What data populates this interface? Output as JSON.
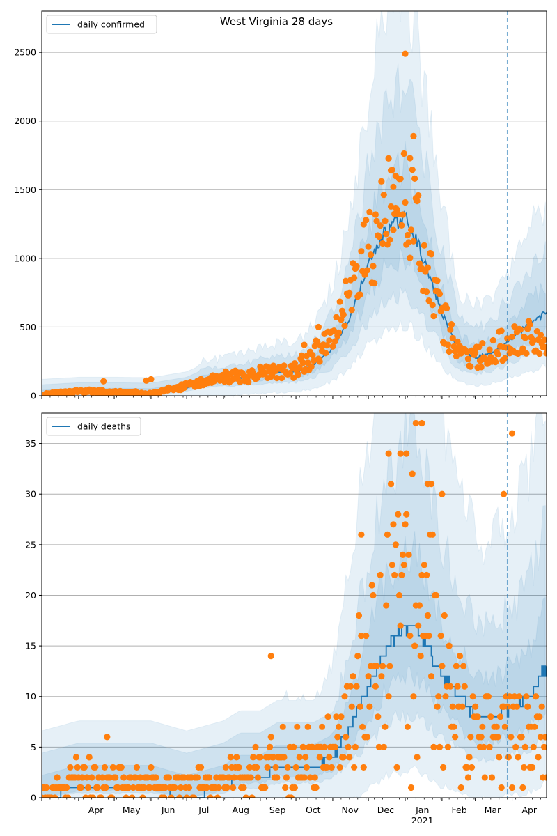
{
  "figure": {
    "title": "West Virginia 28 days"
  },
  "colors": {
    "line": "#1f77b4",
    "points": "#ff7f0e",
    "band": "#1f77b4",
    "grid": "#b0b0b0"
  },
  "chart_data": [
    {
      "type": "line",
      "title": "West Virginia 28 days",
      "legend": "daily confirmed",
      "legend_position": "top-left",
      "grid": "horizontal",
      "ylim": [
        0,
        2800
      ],
      "yticks": [
        0,
        500,
        1000,
        1500,
        2000,
        2500
      ],
      "xlabels": [
        "Apr",
        "May",
        "Jun",
        "Jul",
        "Aug",
        "Sep",
        "Oct",
        "Nov",
        "Dec",
        "Jan",
        "Feb",
        "Mar",
        "Apr"
      ],
      "x_sublabel": "2021",
      "vline_date": "2021-03-28",
      "line_keyframes": [
        [
          "2020-03-01",
          0
        ],
        [
          "2020-04-01",
          15
        ],
        [
          "2020-05-01",
          15
        ],
        [
          "2020-06-01",
          12
        ],
        [
          "2020-07-01",
          55
        ],
        [
          "2020-07-15",
          110
        ],
        [
          "2020-08-01",
          120
        ],
        [
          "2020-08-15",
          130
        ],
        [
          "2020-09-01",
          150
        ],
        [
          "2020-09-15",
          165
        ],
        [
          "2020-10-01",
          170
        ],
        [
          "2020-10-15",
          220
        ],
        [
          "2020-11-01",
          350
        ],
        [
          "2020-11-15",
          560
        ],
        [
          "2020-12-01",
          950
        ],
        [
          "2020-12-15",
          1200
        ],
        [
          "2021-01-01",
          1300
        ],
        [
          "2021-01-10",
          1150
        ],
        [
          "2021-01-20",
          900
        ],
        [
          "2021-02-01",
          600
        ],
        [
          "2021-02-15",
          330
        ],
        [
          "2021-03-01",
          280
        ],
        [
          "2021-03-15",
          310
        ],
        [
          "2021-04-01",
          420
        ],
        [
          "2021-04-15",
          520
        ],
        [
          "2021-04-30",
          610
        ]
      ],
      "band_rel": [
        2.3,
        1.75,
        1.3
      ],
      "points_keyframes": [
        [
          "2020-03-01",
          5
        ],
        [
          "2020-04-01",
          35
        ],
        [
          "2020-05-01",
          25
        ],
        [
          "2020-06-01",
          15
        ],
        [
          "2020-07-01",
          70
        ],
        [
          "2020-08-01",
          130
        ],
        [
          "2020-09-01",
          160
        ],
        [
          "2020-10-01",
          190
        ],
        [
          "2020-11-01",
          400
        ],
        [
          "2020-12-01",
          1050
        ],
        [
          "2020-12-20",
          1350
        ],
        [
          "2021-01-05",
          1400
        ],
        [
          "2021-01-15",
          1000
        ],
        [
          "2021-02-01",
          560
        ],
        [
          "2021-02-15",
          300
        ],
        [
          "2021-03-01",
          270
        ],
        [
          "2021-03-15",
          320
        ],
        [
          "2021-04-01",
          430
        ],
        [
          "2021-04-30",
          390
        ]
      ],
      "points_spread": 0.32,
      "outliers": [
        [
          "2020-04-22",
          105
        ],
        [
          "2020-06-01",
          120
        ],
        [
          "2020-05-28",
          110
        ],
        [
          "2020-10-08",
          370
        ],
        [
          "2020-10-20",
          500
        ],
        [
          "2020-12-20",
          1640
        ],
        [
          "2021-01-01",
          2490
        ],
        [
          "2021-01-08",
          1890
        ],
        [
          "2021-01-05",
          1730
        ],
        [
          "2020-12-24",
          1600
        ],
        [
          "2020-12-22",
          1520
        ]
      ]
    },
    {
      "type": "line",
      "legend": "daily deaths",
      "legend_position": "top-left",
      "grid": "horizontal",
      "ylim": [
        0,
        38
      ],
      "yticks": [
        0,
        5,
        10,
        15,
        20,
        25,
        30,
        35
      ],
      "xlabels": [
        "Apr",
        "May",
        "Jun",
        "Jul",
        "Aug",
        "Sep",
        "Oct",
        "Nov",
        "Dec",
        "Jan",
        "Feb",
        "Mar",
        "Apr"
      ],
      "x_sublabel": "2021",
      "vline_date": "2021-03-28",
      "line_keyframes": [
        [
          "2020-03-01",
          0
        ],
        [
          "2020-04-01",
          1
        ],
        [
          "2020-05-01",
          1
        ],
        [
          "2020-06-01",
          1
        ],
        [
          "2020-07-01",
          0
        ],
        [
          "2020-08-01",
          1
        ],
        [
          "2020-08-15",
          2
        ],
        [
          "2020-09-01",
          2
        ],
        [
          "2020-09-15",
          3
        ],
        [
          "2020-10-01",
          3
        ],
        [
          "2020-10-15",
          3
        ],
        [
          "2020-11-01",
          4
        ],
        [
          "2020-11-15",
          7
        ],
        [
          "2020-12-01",
          11
        ],
        [
          "2020-12-15",
          15
        ],
        [
          "2021-01-01",
          17
        ],
        [
          "2021-01-10",
          17
        ],
        [
          "2021-01-20",
          15
        ],
        [
          "2021-02-01",
          12
        ],
        [
          "2021-02-15",
          10
        ],
        [
          "2021-03-01",
          8
        ],
        [
          "2021-03-15",
          8
        ],
        [
          "2021-04-01",
          9
        ],
        [
          "2021-04-15",
          10
        ],
        [
          "2021-04-30",
          13
        ]
      ],
      "band_rel": [
        3.2,
        2.1,
        1.45
      ],
      "points_keyframes": [
        [
          "2020-03-01",
          0
        ],
        [
          "2020-04-01",
          2
        ],
        [
          "2020-05-01",
          2
        ],
        [
          "2020-06-01",
          1
        ],
        [
          "2020-07-01",
          1
        ],
        [
          "2020-08-01",
          2
        ],
        [
          "2020-09-01",
          3
        ],
        [
          "2020-10-01",
          4
        ],
        [
          "2020-11-01",
          5
        ],
        [
          "2020-12-01",
          11
        ],
        [
          "2020-12-20",
          18
        ],
        [
          "2021-01-05",
          19
        ],
        [
          "2021-01-20",
          16
        ],
        [
          "2021-02-01",
          12
        ],
        [
          "2021-02-15",
          8
        ],
        [
          "2021-03-01",
          5
        ],
        [
          "2021-03-15",
          7
        ],
        [
          "2021-04-01",
          6
        ],
        [
          "2021-04-30",
          6
        ]
      ],
      "points_spread": 0.75,
      "outliers": [
        [
          "2020-04-25",
          6
        ],
        [
          "2020-09-10",
          14
        ],
        [
          "2020-11-25",
          26
        ],
        [
          "2021-01-10",
          37
        ],
        [
          "2021-01-15",
          37
        ],
        [
          "2021-04-01",
          36
        ],
        [
          "2021-03-25",
          30
        ],
        [
          "2020-12-18",
          34
        ],
        [
          "2020-12-28",
          34
        ],
        [
          "2021-01-02",
          34
        ],
        [
          "2021-02-01",
          30
        ],
        [
          "2021-01-20",
          31
        ],
        [
          "2021-01-23",
          31
        ]
      ]
    }
  ]
}
